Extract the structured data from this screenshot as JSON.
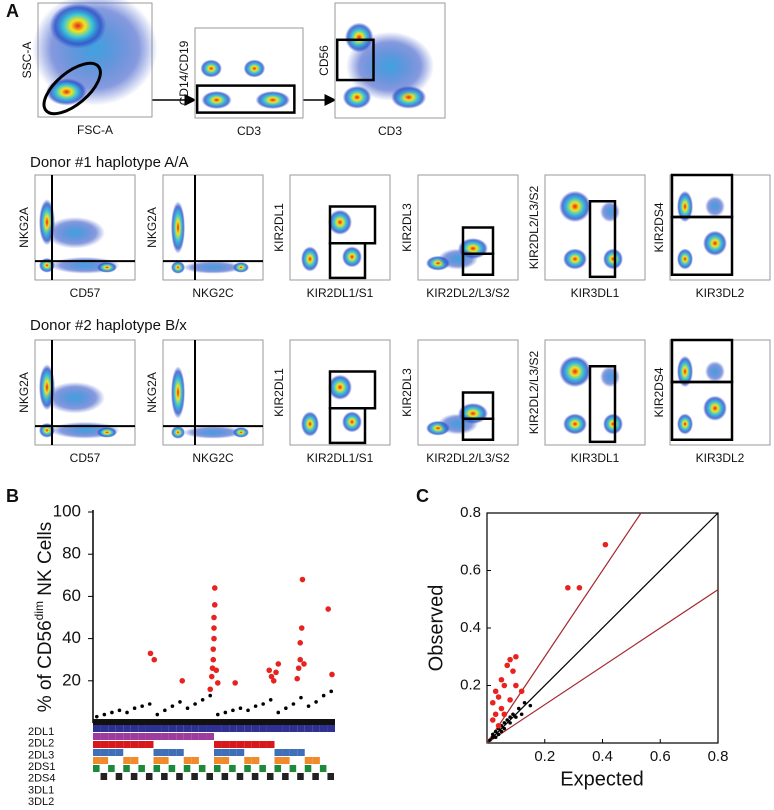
{
  "panel_a": {
    "letter": "A",
    "gating": [
      {
        "x_label": "FSC-A",
        "y_label": "SSC-A"
      },
      {
        "x_label": "CD3",
        "y_label": "CD14/CD19"
      },
      {
        "x_label": "CD3",
        "y_label": "CD56"
      }
    ],
    "donors": [
      {
        "title": "Donor #1 haplotype A/A",
        "plots": [
          {
            "x_label": "CD57",
            "y_label": "NKG2A"
          },
          {
            "x_label": "NKG2C",
            "y_label": "NKG2A"
          },
          {
            "x_label": "KIR2DL1/S1",
            "y_label": "KIR2DL1"
          },
          {
            "x_label": "KIR2DL2/L3/S2",
            "y_label": "KIR2DL3"
          },
          {
            "x_label": "KIR3DL1",
            "y_label": "KIR2DL2/L3/S2"
          },
          {
            "x_label": "KIR3DL2",
            "y_label": "KIR2DS4"
          }
        ]
      },
      {
        "title": "Donor #2 haplotype B/x",
        "plots": [
          {
            "x_label": "CD57",
            "y_label": "NKG2A"
          },
          {
            "x_label": "NKG2C",
            "y_label": "NKG2A"
          },
          {
            "x_label": "KIR2DL1/S1",
            "y_label": "KIR2DL1"
          },
          {
            "x_label": "KIR2DL2/L3/S2",
            "y_label": "KIR2DL3"
          },
          {
            "x_label": "KIR3DL1",
            "y_label": "KIR2DL2/L3/S2"
          },
          {
            "x_label": "KIR3DL2",
            "y_label": "KIR2DS4"
          }
        ]
      }
    ]
  },
  "chart_data": [
    {
      "panel": "B",
      "type": "scatter",
      "y_label": {
        "main": "% of CD56",
        "superscript": "dim",
        "rest": " NK Cells"
      },
      "xlim": [
        0,
        32
      ],
      "ylim": [
        0,
        100
      ],
      "yticks": [
        20,
        40,
        60,
        80,
        100
      ],
      "series": [
        {
          "color": "#000000",
          "x": [
            0.5,
            1.5,
            2.5,
            3.5,
            4.5,
            5.5,
            6.5,
            7.5,
            8.5,
            9.5,
            10.5,
            11.5,
            12.5,
            13.5,
            14.5,
            15.5,
            16.5,
            17.5,
            18.5,
            19.5,
            20.5,
            21.5,
            22.5,
            23.5,
            24.5,
            25.5,
            26.5,
            27.5,
            28.5,
            29.5,
            30.5,
            31.5
          ],
          "values": [
            3,
            4,
            5,
            6,
            5,
            7,
            8,
            9,
            4,
            6,
            8,
            10,
            7,
            9,
            11,
            13,
            4,
            5,
            6,
            7,
            6,
            8,
            9,
            11,
            5,
            7,
            9,
            12,
            8,
            10,
            13,
            15
          ]
        },
        {
          "color": "#e8231f",
          "x": [
            7.6,
            8.1,
            11.8,
            15.5,
            15.7,
            15.8,
            15.9,
            15.9,
            16.0,
            16.0,
            16.0,
            16.1,
            16.1,
            16.3,
            16.5,
            18.8,
            23.3,
            23.6,
            23.9,
            24.2,
            24.5,
            27.0,
            27.2,
            27.4,
            27.4,
            27.6,
            27.7,
            27.9,
            31.1,
            31.6
          ],
          "values": [
            33,
            30,
            20,
            16,
            22,
            26,
            30,
            35,
            40,
            45,
            50,
            56,
            64,
            25,
            19,
            19,
            25,
            22,
            20,
            24,
            28,
            21,
            26,
            30,
            38,
            45,
            68,
            28,
            54,
            23
          ]
        }
      ],
      "genotype_rows": [
        {
          "label": "2DL1",
          "color": "#2e3192"
        },
        {
          "label": "2DL2",
          "color": "#9e3c9e"
        },
        {
          "label": "2DL3",
          "color": "#d7191c"
        },
        {
          "label": "2DS1",
          "color": "#3e6fb8"
        },
        {
          "label": "2DS4",
          "color": "#f08a2a"
        },
        {
          "label": "3DL1",
          "color": "#1c8a3a"
        },
        {
          "label": "3DL2",
          "color": "#222222"
        }
      ]
    },
    {
      "panel": "C",
      "type": "scatter",
      "x_label": "Expected",
      "y_label": "Observed",
      "xlim": [
        0,
        0.8
      ],
      "ylim": [
        0,
        0.8
      ],
      "xticks": [
        0.2,
        0.4,
        0.6,
        0.8
      ],
      "yticks": [
        0.2,
        0.4,
        0.6,
        0.8
      ],
      "series": [
        {
          "color": "#000000",
          "x": [
            0.01,
            0.02,
            0.03,
            0.04,
            0.05,
            0.06,
            0.07,
            0.08,
            0.09,
            0.1,
            0.11,
            0.12,
            0.13,
            0.15,
            0.02,
            0.04,
            0.06,
            0.03,
            0.05,
            0.08
          ],
          "values": [
            0.01,
            0.02,
            0.04,
            0.03,
            0.06,
            0.05,
            0.08,
            0.07,
            0.1,
            0.09,
            0.12,
            0.1,
            0.14,
            0.13,
            0.03,
            0.05,
            0.07,
            0.02,
            0.04,
            0.09
          ]
        },
        {
          "color": "#e8231f",
          "x": [
            0.41,
            0.28,
            0.32,
            0.1,
            0.08,
            0.07,
            0.09,
            0.05,
            0.06,
            0.1,
            0.03,
            0.04,
            0.02,
            0.08,
            0.05,
            0.03,
            0.02,
            0.06,
            0.12,
            0.04
          ],
          "values": [
            0.69,
            0.54,
            0.54,
            0.3,
            0.29,
            0.27,
            0.25,
            0.22,
            0.2,
            0.2,
            0.18,
            0.16,
            0.14,
            0.15,
            0.12,
            0.1,
            0.08,
            0.1,
            0.18,
            0.06
          ]
        }
      ],
      "reference_lines": [
        {
          "slope": 1,
          "color": "#000000"
        },
        {
          "slope": 1.5,
          "color": "#a5262a"
        },
        {
          "slope": 0.667,
          "color": "#a5262a"
        }
      ]
    }
  ]
}
